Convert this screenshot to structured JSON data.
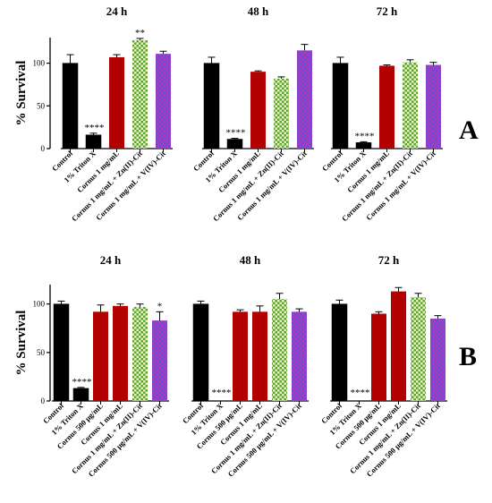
{
  "colors": {
    "black": "#000000",
    "red": "#b30000",
    "green": "#5aa52a",
    "green_check": "#e8f2c8",
    "purple": "#c030b8",
    "purple_check": "#5a55d8"
  },
  "chart_data": [
    {
      "type": "bar",
      "panel_label": "A",
      "ylabel": "% Survival",
      "ylim": [
        0,
        130
      ],
      "yticks": [
        0,
        50,
        100
      ],
      "grid": false,
      "legend": "none",
      "groups": [
        {
          "title": "24 h",
          "categories": [
            "Control",
            "1% Triton X",
            "Cornus 1 mg/mL",
            "Cornus 1 mg/mL + Zn(II)-Cit",
            "Cornus 1 mg/mL + V(IV)-Cit"
          ],
          "values": [
            100,
            16,
            107,
            127,
            111
          ],
          "errors": [
            10,
            2,
            3,
            2,
            3
          ],
          "annotations": [
            "",
            "****",
            "",
            "**",
            ""
          ],
          "styles": [
            "black",
            "black",
            "red",
            "green",
            "purple"
          ]
        },
        {
          "title": "48 h",
          "categories": [
            "Control",
            "1% Triton X",
            "Cornus 1 mg/mL",
            "Cornus 1 mg/mL + Zn(II)-Cit",
            "Cornus 1 mg/mL + V(IV)-Cit"
          ],
          "values": [
            100,
            11,
            90,
            82,
            115
          ],
          "errors": [
            7,
            1,
            1,
            2,
            7
          ],
          "annotations": [
            "",
            "****",
            "",
            "",
            ""
          ],
          "styles": [
            "black",
            "black",
            "red",
            "green",
            "purple"
          ]
        },
        {
          "title": "72 h",
          "categories": [
            "Control",
            "1% Triton X",
            "Cornus 1 mg/mL",
            "Cornus 1 mg/mL + Zn(II)-Cit",
            "Cornus 1 mg/mL + V(IV)-Cit"
          ],
          "values": [
            100,
            7,
            97,
            101,
            98
          ],
          "errors": [
            7,
            1,
            1,
            3,
            3
          ],
          "annotations": [
            "",
            "****",
            "",
            "",
            ""
          ],
          "styles": [
            "black",
            "black",
            "red",
            "green",
            "purple"
          ]
        }
      ]
    },
    {
      "type": "bar",
      "panel_label": "B",
      "ylabel": "% Survival",
      "ylim": [
        0,
        120
      ],
      "yticks": [
        0,
        50,
        100
      ],
      "grid": false,
      "legend": "none",
      "groups": [
        {
          "title": "24 h",
          "categories": [
            "Control",
            "1% Triton X",
            "Cornus 500 µg/mL",
            "Cornus 1 mg/mL",
            "Cornus 1 mg/mL + Zn(II)-Cit",
            "Cornus 500 µg/mL + V(IV)-Cit"
          ],
          "values": [
            100,
            13,
            92,
            98,
            97,
            83
          ],
          "errors": [
            3,
            1,
            7,
            2,
            3,
            9
          ],
          "annotations": [
            "",
            "****",
            "",
            "",
            "",
            "*"
          ],
          "styles": [
            "black",
            "black",
            "red",
            "red",
            "green",
            "purple"
          ]
        },
        {
          "title": "48 h",
          "categories": [
            "Control",
            "1% Triton X",
            "Cornus 500 µg/mL",
            "Cornus 1 mg/mL",
            "Cornus 1 mg/mL + Zn(II)-Cit",
            "Cornus 500 µg/mL + V(IV)-Cit"
          ],
          "values": [
            100,
            0,
            92,
            92,
            105,
            92
          ],
          "errors": [
            3,
            0,
            2,
            6,
            6,
            3
          ],
          "annotations": [
            "",
            "****",
            "",
            "",
            "",
            ""
          ],
          "styles": [
            "black",
            "black",
            "red",
            "red",
            "green",
            "purple"
          ]
        },
        {
          "title": "72 h",
          "categories": [
            "Control",
            "1% Triton X",
            "Cornus 500 µg/mL",
            "Cornus 1 mg/mL",
            "Cornus 1 mg/mL + Zn(II)-Cit",
            "Cornus 500 µg/mL + V(IV)-Cit"
          ],
          "values": [
            100,
            0,
            90,
            113,
            107,
            85
          ],
          "errors": [
            4,
            0,
            2,
            4,
            4,
            3
          ],
          "annotations": [
            "",
            "****",
            "",
            "",
            "",
            ""
          ],
          "styles": [
            "black",
            "black",
            "red",
            "red",
            "green",
            "purple"
          ]
        }
      ]
    }
  ]
}
